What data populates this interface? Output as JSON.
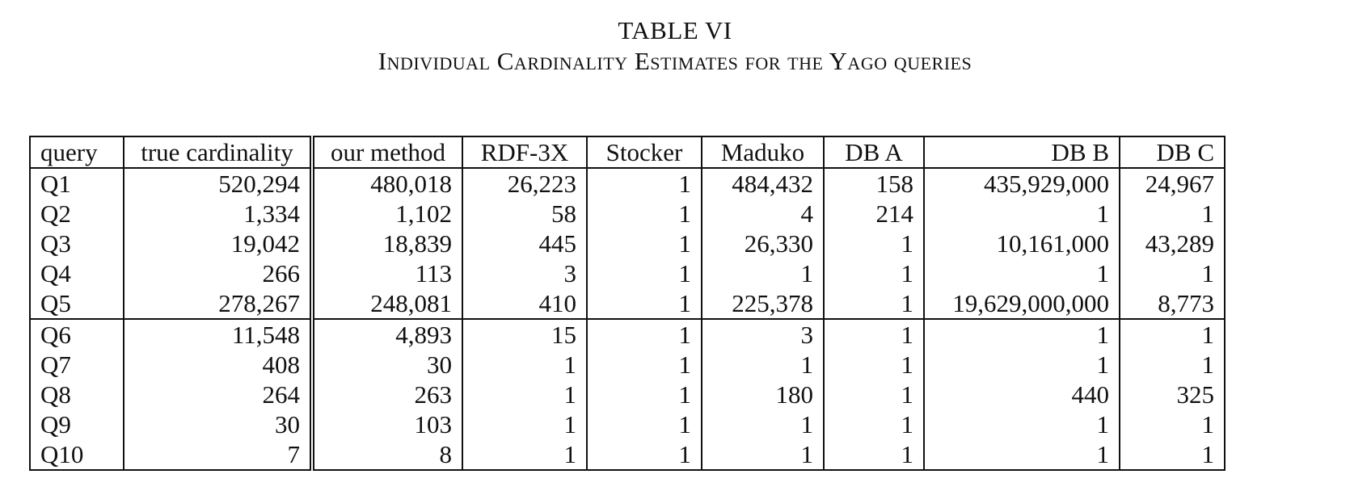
{
  "caption": {
    "label": "TABLE VI",
    "title": "Individual Cardinality Estimates for the Yago queries"
  },
  "table": {
    "headers": [
      "query",
      "true cardinality",
      "our method",
      "RDF-3X",
      "Stocker",
      "Maduko",
      "DB A",
      "DB B",
      "DB C"
    ],
    "rows": [
      [
        "Q1",
        "520,294",
        "480,018",
        "26,223",
        "1",
        "484,432",
        "158",
        "435,929,000",
        "24,967"
      ],
      [
        "Q2",
        "1,334",
        "1,102",
        "58",
        "1",
        "4",
        "214",
        "1",
        "1"
      ],
      [
        "Q3",
        "19,042",
        "18,839",
        "445",
        "1",
        "26,330",
        "1",
        "10,161,000",
        "43,289"
      ],
      [
        "Q4",
        "266",
        "113",
        "3",
        "1",
        "1",
        "1",
        "1",
        "1"
      ],
      [
        "Q5",
        "278,267",
        "248,081",
        "410",
        "1",
        "225,378",
        "1",
        "19,629,000,000",
        "8,773"
      ],
      [
        "Q6",
        "11,548",
        "4,893",
        "15",
        "1",
        "3",
        "1",
        "1",
        "1"
      ],
      [
        "Q7",
        "408",
        "30",
        "1",
        "1",
        "1",
        "1",
        "1",
        "1"
      ],
      [
        "Q8",
        "264",
        "263",
        "1",
        "1",
        "180",
        "1",
        "440",
        "325"
      ],
      [
        "Q9",
        "30",
        "103",
        "1",
        "1",
        "1",
        "1",
        "1",
        "1"
      ],
      [
        "Q10",
        "7",
        "8",
        "1",
        "1",
        "1",
        "1",
        "1",
        "1"
      ]
    ]
  }
}
